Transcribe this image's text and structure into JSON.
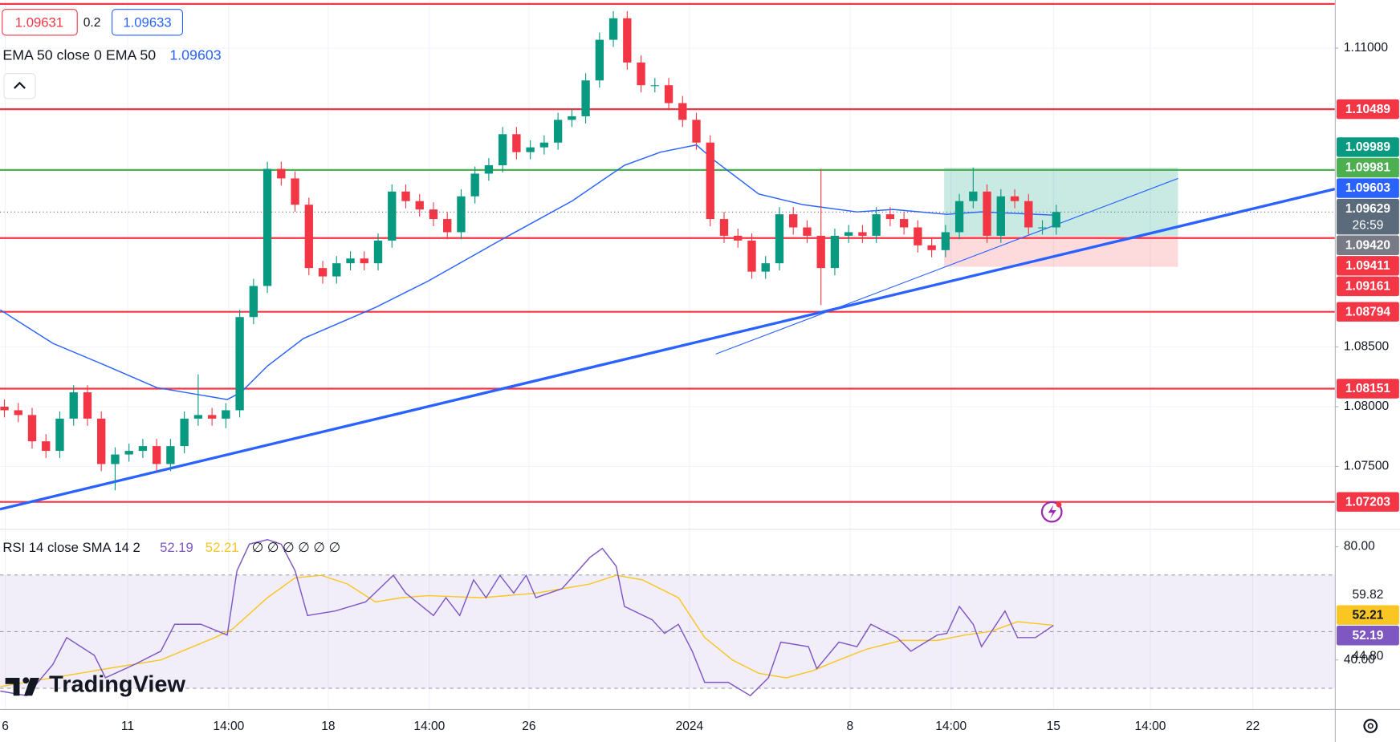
{
  "legend": {
    "bid": 1.09631,
    "spread": 0.2,
    "ask": 1.09633,
    "ema_text": "EMA 50 close 0 EMA 50"
  },
  "brand": "TradingView",
  "chart_data": [
    {
      "type": "candlestick",
      "up_color": "#089981",
      "down_color": "#f23645",
      "grid": true,
      "xlim": [
        -0.32,
        96.13
      ],
      "xticks": [
        {
          "value": 0.06,
          "label": "6"
        },
        {
          "value": 8.9,
          "label": "11"
        },
        {
          "value": 16.2,
          "label": "14:00"
        },
        {
          "value": 23.4,
          "label": "18"
        },
        {
          "value": 30.7,
          "label": "14:00"
        },
        {
          "value": 37.9,
          "label": "26"
        },
        {
          "value": 49.5,
          "label": "2024"
        },
        {
          "value": 61.1,
          "label": "8"
        },
        {
          "value": 68.4,
          "label": "14:00"
        },
        {
          "value": 75.8,
          "label": "15"
        },
        {
          "value": 82.8,
          "label": "14:00"
        },
        {
          "value": 90.2,
          "label": "22"
        }
      ],
      "ylim": [
        1.06985,
        1.11403
      ],
      "yticks": [
        {
          "value": 1.11,
          "label": "1.11000"
        },
        {
          "value": 1.085,
          "label": "1.08500"
        },
        {
          "value": 1.08,
          "label": "1.08000"
        },
        {
          "value": 1.075,
          "label": "1.07500"
        }
      ],
      "open": [
        1.08,
        1.0797,
        1.0793,
        1.0771,
        1.0763,
        1.079,
        1.0812,
        1.079,
        1.0752,
        1.076,
        1.0763,
        1.0767,
        1.0752,
        1.0767,
        1.079,
        1.0793,
        1.079,
        1.0797,
        1.0875,
        1.0901,
        1.0999,
        1.0991,
        1.0969,
        1.0916,
        1.0909,
        1.092,
        1.0924,
        1.092,
        1.0939,
        1.098,
        1.0972,
        1.0965,
        1.0957,
        1.0946,
        1.0976,
        1.0995,
        1.1002,
        1.1028,
        1.1013,
        1.1017,
        1.1021,
        1.104,
        1.1043,
        1.1073,
        1.1107,
        1.1125,
        1.1088,
        1.1069,
        1.1069,
        1.1054,
        1.104,
        1.1021,
        1.0957,
        1.0943,
        1.0939,
        1.0913,
        1.092,
        1.0961,
        1.095,
        1.0943,
        1.0916,
        1.0943,
        1.0946,
        1.0943,
        1.0961,
        1.0957,
        1.095,
        1.0935,
        1.0931,
        1.0946,
        1.0972,
        1.098,
        1.0943,
        1.0976,
        1.0972,
        1.095,
        1.095
      ],
      "high": [
        1.0806,
        1.0803,
        1.0799,
        1.0777,
        1.0796,
        1.0818,
        1.0818,
        1.0796,
        1.0766,
        1.0769,
        1.0773,
        1.0773,
        1.0773,
        1.0796,
        1.0827,
        1.0799,
        1.0803,
        1.0881,
        1.0907,
        1.1005,
        1.1005,
        1.0997,
        1.0975,
        1.0922,
        1.0926,
        1.093,
        1.093,
        1.0945,
        1.0986,
        1.0986,
        1.0978,
        1.0971,
        1.0963,
        1.0982,
        1.1001,
        1.1008,
        1.1034,
        1.1034,
        1.1023,
        1.1027,
        1.1046,
        1.1049,
        1.1079,
        1.1113,
        1.1131,
        1.1131,
        1.1094,
        1.1075,
        1.1075,
        1.106,
        1.1046,
        1.1027,
        1.0963,
        1.0949,
        1.0945,
        1.0926,
        1.0967,
        1.0967,
        1.0956,
        1.0999,
        1.0949,
        1.0952,
        1.0952,
        1.0967,
        1.0967,
        1.0963,
        1.0956,
        1.0941,
        1.0952,
        1.0978,
        1.1,
        1.0986,
        1.0982,
        1.0982,
        1.0978,
        1.0956,
        1.0969
      ],
      "low": [
        1.0791,
        1.0787,
        1.0765,
        1.0757,
        1.0757,
        1.0784,
        1.0784,
        1.0746,
        1.073,
        1.0754,
        1.0757,
        1.0746,
        1.0746,
        1.0761,
        1.0784,
        1.0784,
        1.0782,
        1.0791,
        1.0869,
        1.0895,
        1.0985,
        1.0963,
        1.091,
        1.0903,
        1.0903,
        1.0914,
        1.0914,
        1.0914,
        1.0933,
        1.0966,
        1.0959,
        1.0951,
        1.094,
        1.094,
        1.097,
        1.0989,
        1.0996,
        1.1007,
        1.1007,
        1.1011,
        1.1015,
        1.1034,
        1.1037,
        1.1067,
        1.1101,
        1.1082,
        1.1063,
        1.1063,
        1.1048,
        1.1034,
        1.1015,
        1.0951,
        1.0937,
        1.0933,
        1.0907,
        1.0907,
        1.0914,
        1.0944,
        1.0937,
        1.0885,
        1.091,
        1.0937,
        1.0937,
        1.0937,
        1.0951,
        1.0944,
        1.0929,
        1.0925,
        1.0925,
        1.094,
        1.0966,
        1.0937,
        1.0937,
        1.0966,
        1.0944,
        1.0944,
        1.0944
      ],
      "close": [
        1.0797,
        1.0793,
        1.0771,
        1.0763,
        1.079,
        1.0812,
        1.079,
        1.0752,
        1.076,
        1.0763,
        1.0767,
        1.0752,
        1.0767,
        1.079,
        1.0793,
        1.079,
        1.0797,
        1.0875,
        1.0901,
        1.0999,
        1.0991,
        1.0969,
        1.0916,
        1.0909,
        1.092,
        1.0924,
        1.092,
        1.0939,
        1.098,
        1.0972,
        1.0965,
        1.0957,
        1.0946,
        1.0976,
        1.0995,
        1.1002,
        1.1028,
        1.1013,
        1.1017,
        1.1021,
        1.104,
        1.1043,
        1.1073,
        1.1107,
        1.1125,
        1.1088,
        1.1069,
        1.1069,
        1.1054,
        1.104,
        1.1021,
        1.0957,
        1.0943,
        1.0939,
        1.0913,
        1.092,
        1.0961,
        1.095,
        1.0943,
        1.0916,
        1.0943,
        1.0946,
        1.0943,
        1.0961,
        1.0957,
        1.095,
        1.0935,
        1.0931,
        1.0946,
        1.0972,
        1.098,
        1.0943,
        1.0976,
        1.0972,
        1.095,
        1.095,
        1.09629
      ],
      "close_color": "#5b6b7b",
      "countdown": "26:59",
      "ema": {
        "color": "#2962ff",
        "x": [
          -0.3,
          3.5,
          7.4,
          11,
          16.1,
          17.1,
          19,
          21.6,
          26.8,
          30.6,
          35.8,
          41,
          44.8,
          47.4,
          50,
          51.3,
          54.5,
          57.7,
          61.6,
          64.2,
          68.1,
          70.6,
          75.8
        ],
        "values": [
          1.0881,
          1.0853,
          1.0834,
          1.0816,
          1.0806,
          1.0812,
          1.0834,
          1.0857,
          1.0883,
          1.0905,
          1.0939,
          1.0972,
          1.1002,
          1.1013,
          1.1019,
          1.1006,
          1.0978,
          1.0969,
          1.0963,
          1.0965,
          1.0961,
          1.0963,
          1.09603
        ]
      },
      "levels": [
        {
          "value": 1.1137,
          "color": "#f23645",
          "labeled": false
        },
        {
          "value": 1.10489,
          "color": "#f23645",
          "labeled": true
        },
        {
          "value": 1.09981,
          "color": "#4caf50",
          "labeled": true
        },
        {
          "value": 1.09411,
          "color": "#f23645",
          "labeled": true
        },
        {
          "value": 1.08794,
          "color": "#f23645",
          "labeled": true
        },
        {
          "value": 1.08151,
          "color": "#f23645",
          "labeled": true
        },
        {
          "value": 1.07203,
          "color": "#f23645",
          "labeled": true
        }
      ],
      "tags": [
        {
          "value": 1.09989,
          "color": "#089981"
        },
        {
          "value": 1.0942,
          "label": "1.09420",
          "color": "#787b86"
        },
        {
          "value": 1.09161,
          "color": "#f23645"
        }
      ],
      "trendlines": [
        {
          "x": [
            -0.32,
            96.13
          ],
          "y": [
            1.07142,
            1.09821
          ],
          "color": "#2962ff",
          "width": 3
        },
        {
          "x": [
            51.4,
            84.8
          ],
          "y": [
            1.0844,
            1.0991
          ],
          "color": "#2962ff",
          "width": 1
        }
      ],
      "position": {
        "start": 67.9,
        "end": 84.8,
        "entry": 1.0943,
        "target": 1.1,
        "stop": 1.0917,
        "profit_color": "#089981",
        "loss_color": "#f23645"
      }
    },
    {
      "type": "line",
      "title": "RSI 14 close SMA 14 2",
      "flags": "∅ ∅ ∅ ∅ ∅ ∅",
      "xlim": [
        -0.32,
        96.13
      ],
      "ylim": [
        22.68,
        85.67
      ],
      "yticks": [
        {
          "value": 80,
          "label": "80.00"
        },
        {
          "value": 40,
          "label": "40.00"
        }
      ],
      "bands": {
        "upper": 70,
        "middle": 50,
        "lower": 30,
        "color": "#7e57c2"
      },
      "series": [
        {
          "color": "#7e57c2",
          "x": [
            -0.3,
            1.6,
            3.5,
            4.5,
            6.5,
            7.3,
            9.4,
            11.3,
            12.3,
            14.2,
            16.1,
            16.8,
            17.7,
            19,
            20,
            21,
            21.9,
            23.9,
            26.1,
            28.1,
            29,
            31,
            31.9,
            32.9,
            33.9,
            34.8,
            35.8,
            36.8,
            37.7,
            38.4,
            40.3,
            42.3,
            43.2,
            44.2,
            44.8,
            46.8,
            47.7,
            48.7,
            49.7,
            50.6,
            52.3,
            53.9,
            55.2,
            56.1,
            58.1,
            58.7,
            60.3,
            61.6,
            62.6,
            64.5,
            65.5,
            67.4,
            68.1,
            69,
            70,
            70.6,
            72.3,
            73.2,
            74.5,
            75.8
          ],
          "values": [
            29.0,
            27.4,
            38.4,
            47.9,
            41.6,
            33.7,
            38.4,
            43.1,
            52.6,
            52.6,
            48.8,
            71.5,
            80.9,
            82.5,
            80.9,
            71.5,
            55.7,
            57.3,
            60.5,
            69.9,
            63.6,
            55.7,
            62.0,
            55.7,
            68.3,
            62.0,
            69.9,
            63.6,
            69.9,
            62.0,
            65.2,
            76.2,
            79.4,
            73.1,
            58.9,
            54.2,
            49.4,
            52.6,
            43.1,
            32.1,
            32.1,
            27.4,
            33.7,
            46.3,
            44.7,
            36.9,
            46.3,
            44.7,
            52.6,
            47.9,
            43.1,
            48.8,
            49.4,
            58.9,
            52.6,
            44.7,
            57.3,
            47.9,
            47.9,
            52.19
          ]
        },
        {
          "color": "#f9c623",
          "x": [
            -0.3,
            3.5,
            7.4,
            11.3,
            15.2,
            16.5,
            19,
            21,
            22.9,
            24.8,
            26.8,
            28.7,
            30.6,
            34.5,
            38.4,
            42.3,
            44.2,
            46.1,
            48.7,
            50.6,
            52.6,
            54.5,
            56.5,
            58.4,
            60.3,
            62.3,
            64.8,
            67.4,
            69.4,
            71.3,
            73.2,
            75.8
          ],
          "values": [
            30.6,
            33.7,
            36.9,
            40.0,
            47.9,
            51.0,
            62.0,
            69.0,
            69.9,
            66.8,
            60.5,
            62.0,
            62.7,
            62.0,
            63.6,
            66.8,
            69.9,
            68.3,
            62.0,
            47.9,
            40.0,
            35.3,
            33.7,
            36.2,
            40.0,
            43.8,
            46.9,
            46.9,
            48.8,
            50.1,
            53.5,
            52.21
          ]
        }
      ],
      "tags": [
        {
          "value": 59.82,
          "color": null
        },
        {
          "value": 44.8,
          "label": "44.80",
          "color": null
        }
      ]
    }
  ]
}
